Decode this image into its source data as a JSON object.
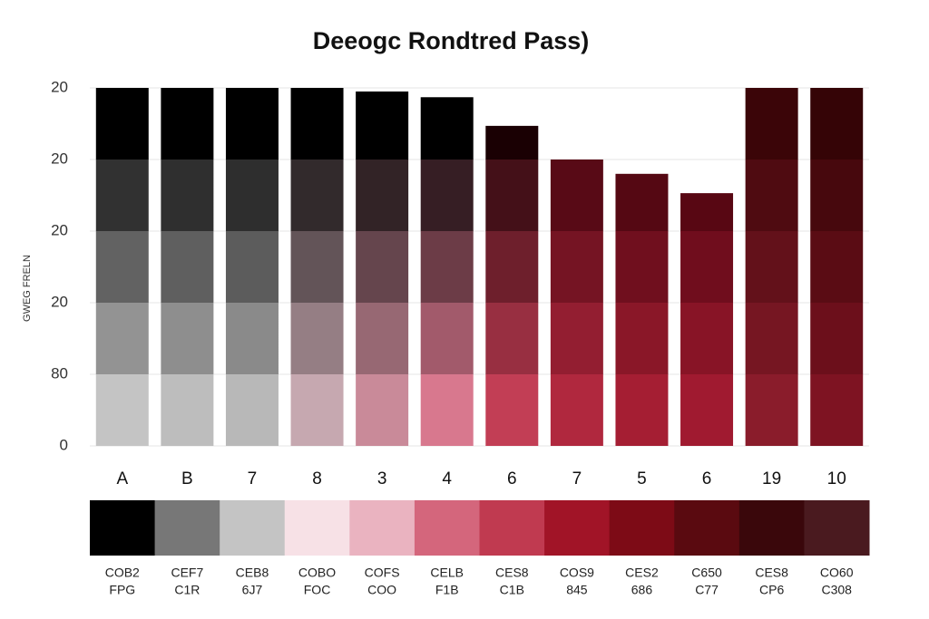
{
  "chart_data": {
    "type": "bar",
    "title": "Deeogc Rondtred Pass)",
    "y_label": "GWEG FRELN",
    "categories": [
      "A",
      "B",
      "7",
      "8",
      "3",
      "4",
      "6",
      "7",
      "5",
      "6",
      "19",
      "10"
    ],
    "values": [
      5,
      5,
      5,
      5,
      4.95,
      4.87,
      4.47,
      4.0,
      3.8,
      3.53,
      5,
      5
    ],
    "bar_colors": [
      [
        "#000000",
        "#c4c4c4"
      ],
      [
        "#000000",
        "#bdbdbd"
      ],
      [
        "#000000",
        "#b8b8b8"
      ],
      [
        "#000000",
        "#c6a8b0"
      ],
      [
        "#000000",
        "#c98a99"
      ],
      [
        "#000000",
        "#d8788e"
      ],
      [
        "#1a0003",
        "#c23e55"
      ],
      [
        "#3a0008",
        "#b0283e"
      ],
      [
        "#3a0008",
        "#a51e33"
      ],
      [
        "#400009",
        "#a01a30"
      ],
      [
        "#3b0508",
        "#8a1c2b"
      ],
      [
        "#350406",
        "#7e1322"
      ]
    ],
    "ylim": [
      0,
      5
    ],
    "yticks": [
      0,
      {
        "value": 1,
        "label": "80"
      },
      {
        "value": 2,
        "label": "20"
      },
      {
        "value": 3,
        "label": "20"
      },
      {
        "value": 4,
        "label": "20"
      },
      {
        "value": 5,
        "label": "20"
      }
    ],
    "grid": true,
    "swatches": [
      {
        "color": "#000000",
        "label": [
          "COB2",
          "FPG"
        ]
      },
      {
        "color": "#777777",
        "label": [
          "CEF7",
          "C1R"
        ]
      },
      {
        "color": "#c4c4c4",
        "label": [
          "CEB8",
          "6J7"
        ]
      },
      {
        "color": "#f7e1e6",
        "label": [
          "COBO",
          "FOC"
        ]
      },
      {
        "color": "#eab3c0",
        "label": [
          "COFS",
          "COO"
        ]
      },
      {
        "color": "#d4667c",
        "label": [
          "CELB",
          "F1B"
        ]
      },
      {
        "color": "#c03a50",
        "label": [
          "CES8",
          "C1B"
        ]
      },
      {
        "color": "#a11427",
        "label": [
          "COS9",
          "845"
        ]
      },
      {
        "color": "#7d0b16",
        "label": [
          "CES2",
          "686"
        ]
      },
      {
        "color": "#5a0a10",
        "label": [
          "C650",
          "C77"
        ]
      },
      {
        "color": "#3a070b",
        "label": [
          "CES8",
          "CP6"
        ]
      },
      {
        "color": "#4a1a1f",
        "label": [
          "CO60",
          "C308"
        ]
      }
    ]
  }
}
